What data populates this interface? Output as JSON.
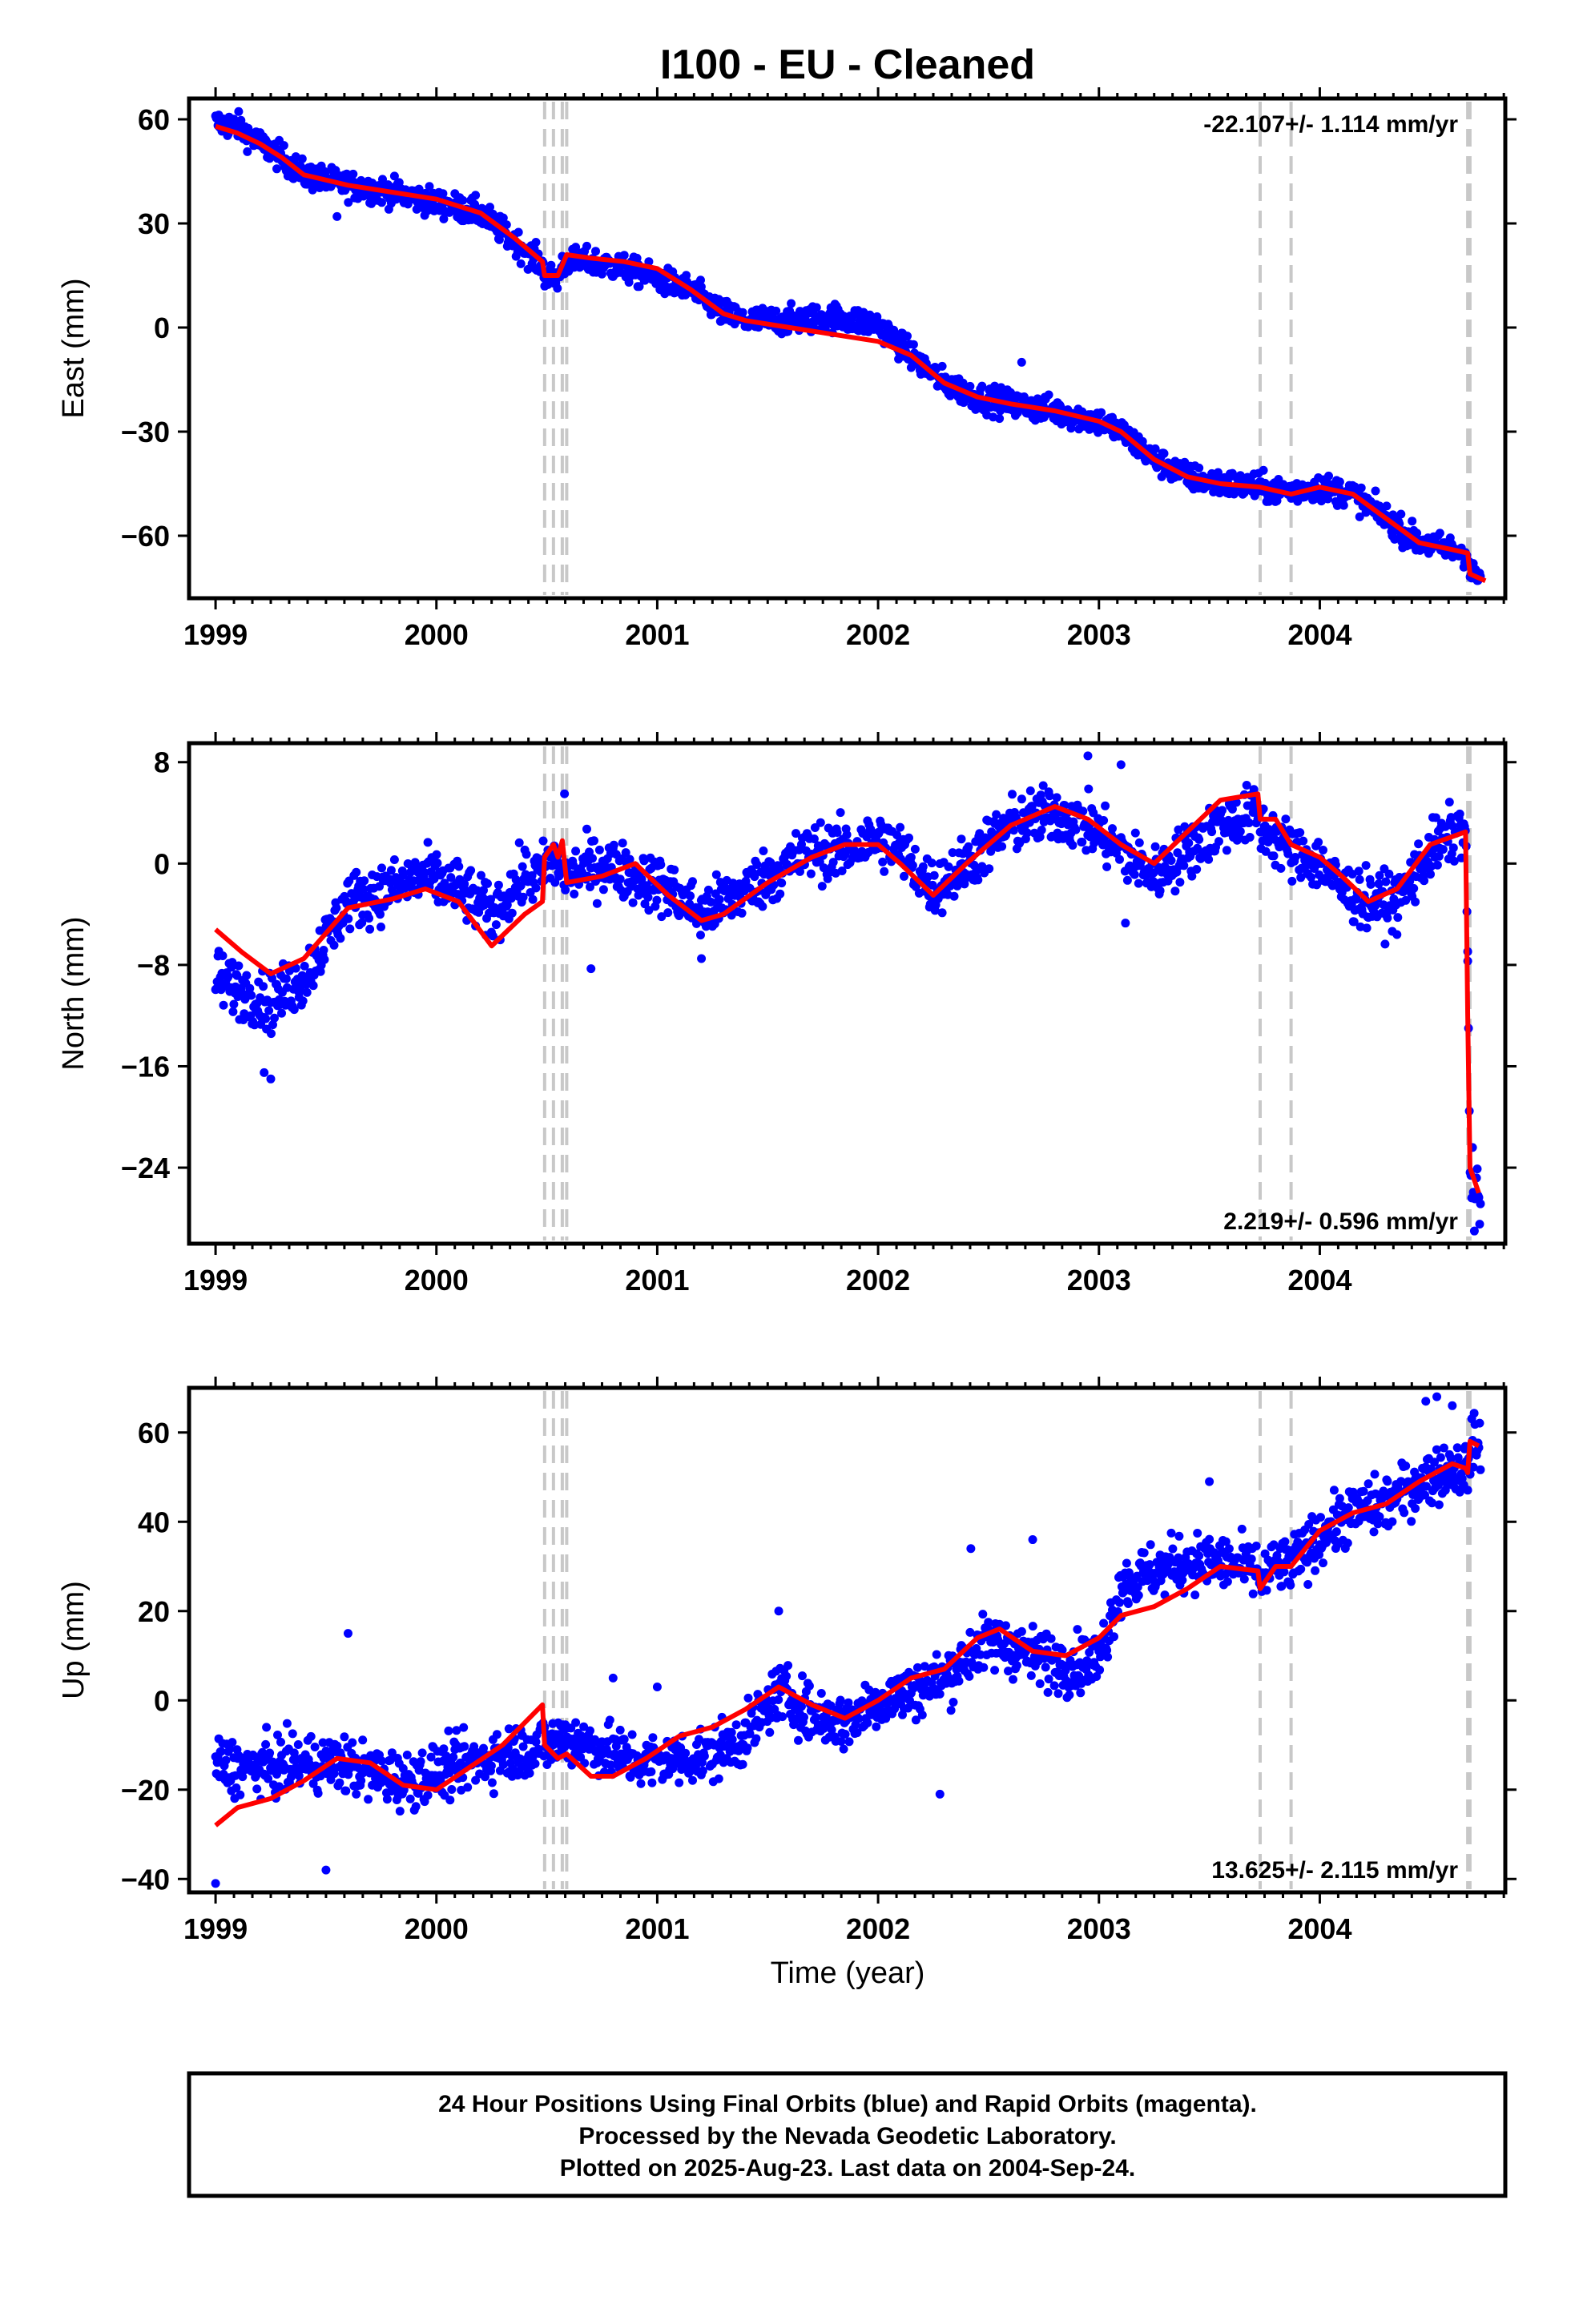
{
  "title": "I100  - EU - Cleaned",
  "x_label": "Time (year)",
  "footer_lines": [
    "24 Hour Positions Using Final Orbits (blue) and Rapid Orbits (magenta).",
    "Processed by the Nevada Geodetic Laboratory.",
    "Plotted on 2025-Aug-23. Last data on 2004-Sep-24."
  ],
  "colors": {
    "points": "#0000ff",
    "model": "#ff0000",
    "steps": "#c8c8c8",
    "frame": "#000000"
  },
  "chart_data": [
    {
      "type": "scatter",
      "component": "East",
      "ylabel": "East (mm)",
      "rate_label": "-22.107+/- 1.114 mm/yr",
      "rate_position": "top-right",
      "xlim": [
        1998.88,
        2004.84
      ],
      "ylim": [
        -78,
        66
      ],
      "x_ticks": [
        1999,
        2000,
        2001,
        2002,
        2003,
        2004
      ],
      "y_ticks": [
        60,
        30,
        0,
        -30,
        -60
      ],
      "y_tick_labels": [
        "60",
        "30",
        "0",
        "−30",
        "−60"
      ],
      "step_epochs": [
        2000.49,
        2000.53,
        2000.57,
        2000.59,
        2003.73,
        2003.87,
        2004.67,
        2004.68
      ],
      "series": [
        {
          "name": "model",
          "x": [
            1999.0,
            1999.1,
            1999.2,
            1999.3,
            1999.4,
            1999.6,
            1999.8,
            2000.0,
            2000.2,
            2000.35,
            2000.48,
            2000.49,
            2000.55,
            2000.57,
            2000.59,
            2000.7,
            2000.85,
            2001.0,
            2001.15,
            2001.3,
            2001.4,
            2001.6,
            2001.8,
            2002.0,
            2002.15,
            2002.3,
            2002.45,
            2002.6,
            2002.8,
            2003.0,
            2003.1,
            2003.25,
            2003.4,
            2003.55,
            2003.73,
            2003.8,
            2003.87,
            2004.0,
            2004.15,
            2004.3,
            2004.45,
            2004.6,
            2004.67,
            2004.68,
            2004.75
          ],
          "y": [
            58,
            56,
            53,
            49,
            44,
            41,
            39,
            37,
            33,
            26,
            19,
            15,
            15,
            18,
            21,
            20,
            19,
            17,
            11,
            4,
            2,
            0,
            -2,
            -4,
            -8,
            -16,
            -20,
            -22,
            -24,
            -27,
            -30,
            -38,
            -43,
            -45,
            -46,
            -47,
            -48,
            -46,
            -48,
            -55,
            -62,
            -64,
            -65,
            -71,
            -73
          ]
        },
        {
          "name": "daily positions",
          "anchors_x": [
            1999.0,
            1999.1,
            1999.2,
            1999.3,
            1999.4,
            1999.6,
            1999.8,
            2000.0,
            2000.2,
            2000.35,
            2000.48,
            2000.49,
            2000.55,
            2000.57,
            2000.59,
            2000.7,
            2000.85,
            2001.0,
            2001.15,
            2001.3,
            2001.4,
            2001.6,
            2001.8,
            2002.0,
            2002.15,
            2002.3,
            2002.45,
            2002.6,
            2002.8,
            2003.0,
            2003.1,
            2003.25,
            2003.4,
            2003.55,
            2003.73,
            2003.8,
            2003.87,
            2004.0,
            2004.15,
            2004.3,
            2004.45,
            2004.6,
            2004.67,
            2004.68,
            2004.75
          ],
          "anchors_y": [
            59,
            58,
            53,
            49,
            44,
            41,
            39,
            36,
            33,
            25,
            18,
            15,
            14,
            18,
            19,
            19,
            17,
            14,
            11,
            4,
            2,
            2,
            3,
            1,
            -8,
            -16,
            -20,
            -22,
            -24,
            -27,
            -30,
            -38,
            -43,
            -45,
            -46,
            -47,
            -47,
            -46,
            -48,
            -55,
            -62,
            -64,
            -65,
            -71,
            -73
          ],
          "spread": 2.8,
          "outliers": [
            {
              "x": 2002.65,
              "y": -10
            },
            {
              "x": 1999.55,
              "y": 32
            },
            {
              "x": 2001.25,
              "y": 8
            }
          ]
        }
      ]
    },
    {
      "type": "scatter",
      "component": "North",
      "ylabel": "North (mm)",
      "rate_label": "2.219+/- 0.596 mm/yr",
      "rate_position": "bottom-right",
      "xlim": [
        1998.88,
        2004.84
      ],
      "ylim": [
        -30,
        9.5
      ],
      "x_ticks": [
        1999,
        2000,
        2001,
        2002,
        2003,
        2004
      ],
      "y_ticks": [
        8,
        0,
        -8,
        -16,
        -24
      ],
      "y_tick_labels": [
        "8",
        "0",
        "−8",
        "−16",
        "−24"
      ],
      "step_epochs": [
        2000.49,
        2000.53,
        2000.57,
        2000.59,
        2003.73,
        2003.87,
        2004.67,
        2004.68
      ],
      "series": [
        {
          "name": "model",
          "x": [
            1999.0,
            1999.12,
            1999.25,
            1999.4,
            1999.6,
            1999.8,
            1999.95,
            2000.1,
            2000.25,
            2000.4,
            2000.48,
            2000.49,
            2000.53,
            2000.55,
            2000.57,
            2000.59,
            2000.75,
            2000.9,
            2001.05,
            2001.2,
            2001.3,
            2001.5,
            2001.7,
            2001.85,
            2002.0,
            2002.1,
            2002.25,
            2002.4,
            2002.6,
            2002.8,
            2002.95,
            2003.1,
            2003.25,
            2003.4,
            2003.55,
            2003.72,
            2003.73,
            2003.8,
            2003.87,
            2004.0,
            2004.1,
            2004.22,
            2004.35,
            2004.5,
            2004.66,
            2004.67,
            2004.68,
            2004.72
          ],
          "y": [
            -5.2,
            -7,
            -8.7,
            -7.5,
            -3.5,
            -2.8,
            -2,
            -3,
            -6.5,
            -4,
            -3,
            0.5,
            1.5,
            0.5,
            1.8,
            -1.5,
            -1,
            0,
            -2.5,
            -4.5,
            -4,
            -1.5,
            0.5,
            1.5,
            1.5,
            0,
            -2.5,
            0,
            3,
            4.5,
            3.5,
            1.5,
            0,
            2.5,
            5,
            5.5,
            3.5,
            3.5,
            1.5,
            0.5,
            -1,
            -3,
            -2,
            1.5,
            2.5,
            -12,
            -24,
            -26
          ]
        },
        {
          "name": "daily positions",
          "anchors_x": [
            1999.0,
            1999.12,
            1999.25,
            1999.4,
            1999.6,
            1999.8,
            1999.95,
            2000.1,
            2000.25,
            2000.4,
            2000.48,
            2000.49,
            2000.53,
            2000.55,
            2000.57,
            2000.59,
            2000.75,
            2000.9,
            2001.05,
            2001.2,
            2001.3,
            2001.5,
            2001.7,
            2001.85,
            2002.0,
            2002.1,
            2002.25,
            2002.4,
            2002.6,
            2002.8,
            2002.95,
            2003.1,
            2003.25,
            2003.4,
            2003.55,
            2003.72,
            2003.73,
            2003.8,
            2003.87,
            2004.0,
            2004.1,
            2004.22,
            2004.35,
            2004.5,
            2004.66,
            2004.67,
            2004.68,
            2004.72
          ],
          "anchors_y": [
            -9,
            -10,
            -11,
            -9,
            -3,
            -2,
            -1,
            -2,
            -4,
            -1,
            -1,
            0,
            0,
            0,
            0,
            -1,
            0,
            -1,
            -2,
            -4,
            -3,
            -1,
            1,
            1,
            2,
            1,
            -2,
            0,
            3,
            4,
            3,
            1,
            -1,
            1,
            3,
            4,
            3,
            2,
            1,
            0,
            -2,
            -3,
            -3,
            1,
            3,
            -8,
            -24,
            -27
          ],
          "spread": 1.6,
          "outliers": [
            {
              "x": 1999.25,
              "y": -17
            },
            {
              "x": 1999.22,
              "y": -16.5
            },
            {
              "x": 2000.58,
              "y": 5.5
            },
            {
              "x": 2002.95,
              "y": 8.5
            },
            {
              "x": 2003.1,
              "y": 7.8
            },
            {
              "x": 2000.7,
              "y": -8.3
            },
            {
              "x": 2001.2,
              "y": -7.5
            },
            {
              "x": 2003.12,
              "y": -4.7
            },
            {
              "x": 2004.67,
              "y": -7.7
            },
            {
              "x": 2004.7,
              "y": -29
            }
          ]
        }
      ]
    },
    {
      "type": "scatter",
      "component": "Up",
      "ylabel": "Up (mm)",
      "rate_label": "13.625+/- 2.115 mm/yr",
      "rate_position": "bottom-right",
      "xlim": [
        1998.88,
        2004.84
      ],
      "ylim": [
        -43,
        70
      ],
      "x_ticks": [
        1999,
        2000,
        2001,
        2002,
        2003,
        2004
      ],
      "y_ticks": [
        60,
        40,
        20,
        0,
        -20,
        -40
      ],
      "y_tick_labels": [
        "60",
        "40",
        "20",
        "0",
        "−20",
        "−40"
      ],
      "step_epochs": [
        2000.49,
        2000.53,
        2000.57,
        2000.59,
        2003.73,
        2003.87,
        2004.67,
        2004.68
      ],
      "series": [
        {
          "name": "model",
          "x": [
            1999.0,
            1999.1,
            1999.25,
            1999.4,
            1999.55,
            1999.7,
            1999.85,
            2000.0,
            2000.15,
            2000.3,
            2000.48,
            2000.49,
            2000.55,
            2000.59,
            2000.7,
            2000.8,
            2000.95,
            2001.1,
            2001.25,
            2001.4,
            2001.55,
            2001.7,
            2001.85,
            2002.0,
            2002.15,
            2002.3,
            2002.45,
            2002.55,
            2002.7,
            2002.85,
            2003.0,
            2003.1,
            2003.25,
            2003.4,
            2003.55,
            2003.72,
            2003.73,
            2003.8,
            2003.87,
            2004.0,
            2004.15,
            2004.3,
            2004.45,
            2004.6,
            2004.66,
            2004.67,
            2004.68,
            2004.72
          ],
          "y": [
            -28,
            -24,
            -22,
            -18,
            -13,
            -14,
            -19,
            -20,
            -15,
            -10,
            -1,
            -10,
            -13,
            -12,
            -17,
            -17,
            -13,
            -8,
            -6,
            -2,
            3,
            -1,
            -4,
            0,
            5,
            7,
            14,
            16,
            11,
            10,
            14,
            19,
            21,
            25,
            30,
            29,
            25,
            30,
            30,
            38,
            42,
            44,
            49,
            53,
            52,
            51,
            58,
            57
          ]
        },
        {
          "name": "daily positions",
          "anchors_x": [
            1999.0,
            1999.1,
            1999.25,
            1999.4,
            1999.55,
            1999.7,
            1999.85,
            2000.0,
            2000.15,
            2000.3,
            2000.48,
            2000.49,
            2000.55,
            2000.59,
            2000.7,
            2000.8,
            2000.95,
            2001.1,
            2001.25,
            2001.4,
            2001.55,
            2001.7,
            2001.85,
            2002.0,
            2002.15,
            2002.3,
            2002.45,
            2002.55,
            2002.7,
            2002.85,
            2003.0,
            2003.1,
            2003.25,
            2003.4,
            2003.55,
            2003.72,
            2003.73,
            2003.8,
            2003.87,
            2004.0,
            2004.15,
            2004.3,
            2004.45,
            2004.6,
            2004.66,
            2004.67,
            2004.68,
            2004.72
          ],
          "anchors_y": [
            -14,
            -15,
            -15,
            -14,
            -14,
            -16,
            -18,
            -16,
            -14,
            -12,
            -10,
            -10,
            -9,
            -8,
            -10,
            -12,
            -14,
            -13,
            -12,
            -8,
            2,
            -3,
            -5,
            0,
            2,
            5,
            12,
            13,
            10,
            8,
            9,
            26,
            29,
            31,
            31,
            29,
            27,
            30,
            30,
            37,
            42,
            44,
            49,
            52,
            52,
            51,
            57,
            57
          ],
          "spread": 4.5,
          "outliers": [
            {
              "x": 1999.0,
              "y": -41
            },
            {
              "x": 1999.6,
              "y": 15
            },
            {
              "x": 1999.5,
              "y": -38
            },
            {
              "x": 2000.8,
              "y": 5
            },
            {
              "x": 2001.0,
              "y": 3
            },
            {
              "x": 2002.28,
              "y": -21
            },
            {
              "x": 2002.42,
              "y": 34
            },
            {
              "x": 2002.7,
              "y": 36
            },
            {
              "x": 2003.5,
              "y": 49
            },
            {
              "x": 2004.48,
              "y": 67
            },
            {
              "x": 2004.53,
              "y": 68
            },
            {
              "x": 2004.6,
              "y": 66
            },
            {
              "x": 2001.55,
              "y": 20
            }
          ]
        }
      ]
    }
  ]
}
